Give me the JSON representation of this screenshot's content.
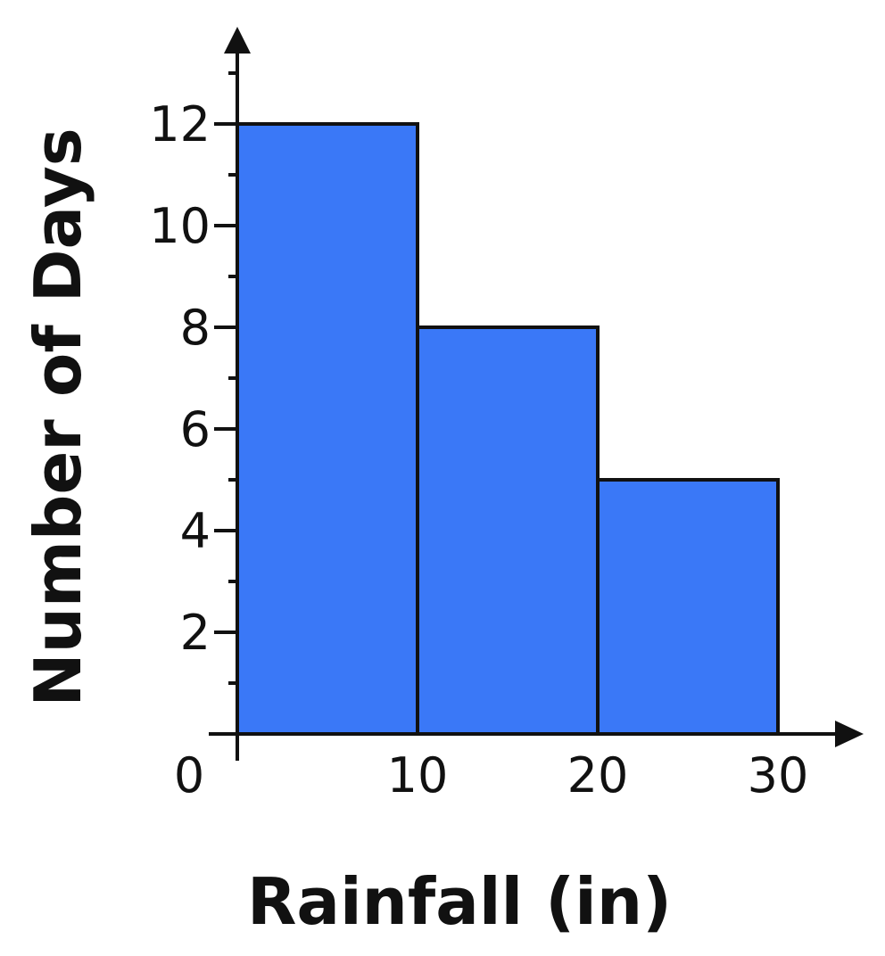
{
  "chart_data": {
    "type": "bar",
    "subtype": "histogram",
    "title": "",
    "xlabel": "Rainfall (in)",
    "ylabel": "Number of Days",
    "bins": [
      {
        "start": 0,
        "end": 10,
        "value": 12
      },
      {
        "start": 10,
        "end": 20,
        "value": 8
      },
      {
        "start": 20,
        "end": 30,
        "value": 5
      }
    ],
    "xlim": [
      0,
      30
    ],
    "ylim": [
      0,
      13.5
    ],
    "x_ticks": [
      {
        "value": 0,
        "label": "0"
      },
      {
        "value": 10,
        "label": "10"
      },
      {
        "value": 20,
        "label": "20"
      },
      {
        "value": 30,
        "label": "30"
      }
    ],
    "y_ticks": [
      {
        "value": 2,
        "label": "2"
      },
      {
        "value": 4,
        "label": "4"
      },
      {
        "value": 6,
        "label": "6"
      },
      {
        "value": 8,
        "label": "8"
      },
      {
        "value": 10,
        "label": "10"
      },
      {
        "value": 12,
        "label": "12"
      }
    ],
    "y_minor_tick_step": 1,
    "grid": false,
    "legend": "none",
    "colors": {
      "bar_fill": "#3a78f7",
      "bar_stroke": "#111111",
      "axis": "#111111"
    }
  }
}
